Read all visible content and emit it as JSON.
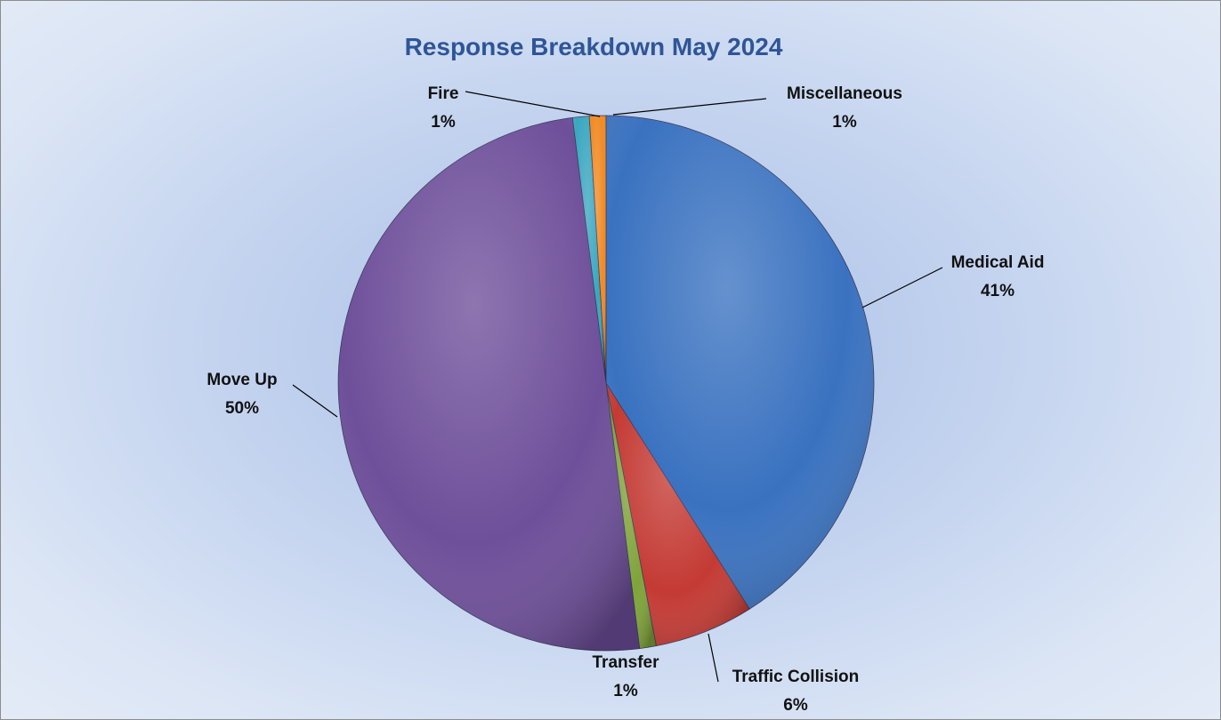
{
  "chart_data": {
    "type": "pie",
    "title": "Response Breakdown May 2024",
    "slices": [
      {
        "label": "Medical Aid",
        "value": 41,
        "pct_label": "41%",
        "color": "#3a72c0"
      },
      {
        "label": "Traffic Collision",
        "value": 6,
        "pct_label": "6%",
        "color": "#c43a34"
      },
      {
        "label": "Transfer",
        "value": 1,
        "pct_label": "1%",
        "color": "#7fa33a"
      },
      {
        "label": "Move Up",
        "value": 50,
        "pct_label": "50%",
        "color": "#6e4f9a"
      },
      {
        "label": "Fire",
        "value": 1,
        "pct_label": "1%",
        "color": "#3aa6c0"
      },
      {
        "label": "Miscellaneous",
        "value": 1,
        "pct_label": "1%",
        "color": "#f08a24"
      }
    ]
  }
}
